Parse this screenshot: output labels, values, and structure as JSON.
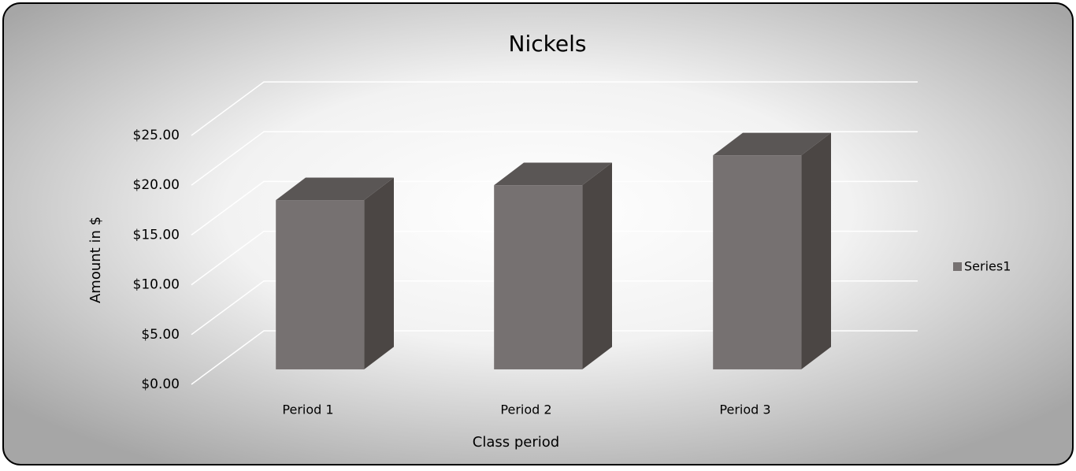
{
  "chart_data": {
    "type": "bar3d",
    "title": "Nickels",
    "x_label": "Class period",
    "y_label": "Amount in $",
    "categories": [
      "Period 1",
      "Period 2",
      "Period 3"
    ],
    "series": [
      {
        "name": "Series1",
        "color": "#767171",
        "values": [
          17,
          18.5,
          21.5
        ]
      }
    ],
    "ylim": [
      0,
      25
    ],
    "yticks": [
      {
        "value": 0,
        "label": "$0.00"
      },
      {
        "value": 5,
        "label": "$5.00"
      },
      {
        "value": 10,
        "label": "$10.00"
      },
      {
        "value": 15,
        "label": "$15.00"
      },
      {
        "value": 20,
        "label": "$20.00"
      },
      {
        "value": 25,
        "label": "$25.00"
      }
    ],
    "grid": true,
    "legend": "right"
  }
}
